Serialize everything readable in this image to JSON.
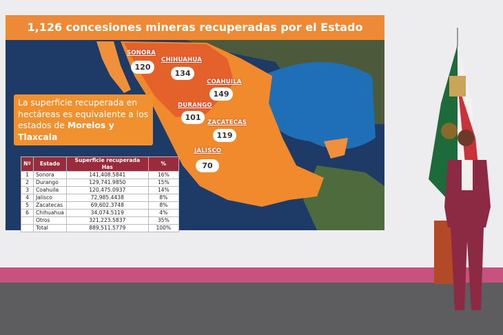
{
  "slide": {
    "title": "1,126 concesiones mineras recuperadas por el Estado",
    "callout": {
      "text": "La superficie recuperada en hectáreas es equivalente a los estados de",
      "bold": "Morelos y Tlaxcala"
    },
    "map_labels": [
      {
        "state": "SONORA",
        "value": 120
      },
      {
        "state": "CHIHUAHUA",
        "value": 134
      },
      {
        "state": "COAHUILA",
        "value": 149
      },
      {
        "state": "DURANGO",
        "value": 101
      },
      {
        "state": "ZACATECAS",
        "value": 119
      },
      {
        "state": "JALISCO",
        "value": 70
      }
    ],
    "table": {
      "header": [
        "Nº",
        "Estado",
        "Superficie recuperada Has",
        "%"
      ],
      "rows": [
        [
          "1",
          "Sonora",
          "141,408.5841",
          "16%"
        ],
        [
          "2",
          "Durango",
          "129,741.9850",
          "15%"
        ],
        [
          "3",
          "Coahuila",
          "120,475.0937",
          "14%"
        ],
        [
          "4",
          "Jalisco",
          "72,985.4438",
          "8%"
        ],
        [
          "5",
          "Zacatecas",
          "69,602.3748",
          "8%"
        ],
        [
          "6",
          "Chihuahua",
          "34,074.5119",
          "4%"
        ],
        [
          "",
          "Otros",
          "321,223.5837",
          "35%"
        ],
        [
          "",
          "Total",
          "889,511.5779",
          "100%"
        ]
      ]
    }
  }
}
